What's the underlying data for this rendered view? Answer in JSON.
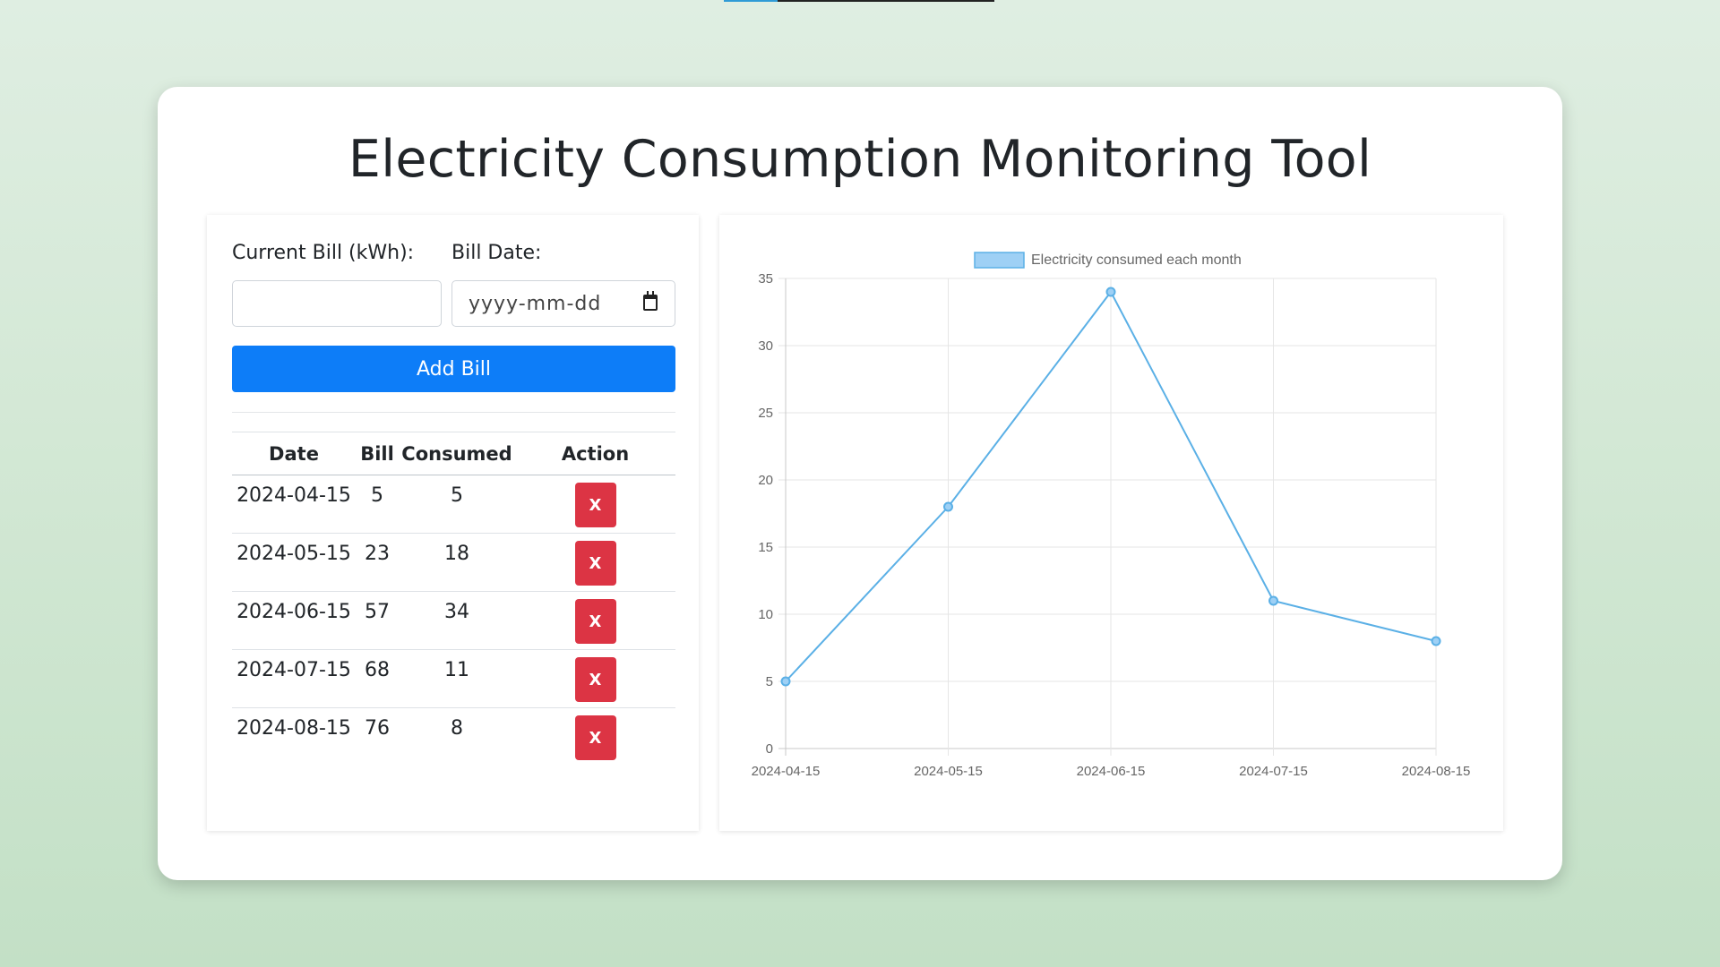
{
  "app": {
    "title": "Electricity Consumption Monitoring Tool",
    "top_progress_percent": 20
  },
  "form": {
    "bill_label": "Current Bill (kWh):",
    "bill_value": "",
    "date_label": "Bill Date:",
    "date_placeholder": "yyyy-mm-dd",
    "add_button_label": "Add Bill"
  },
  "table": {
    "headers": [
      "Date",
      "Bill",
      "Consumed",
      "Action"
    ],
    "delete_label": "X",
    "rows": [
      {
        "date": "2024-04-15",
        "bill": "5",
        "consumed": "5"
      },
      {
        "date": "2024-05-15",
        "bill": "23",
        "consumed": "18"
      },
      {
        "date": "2024-06-15",
        "bill": "57",
        "consumed": "34"
      },
      {
        "date": "2024-07-15",
        "bill": "68",
        "consumed": "11"
      },
      {
        "date": "2024-08-15",
        "bill": "76",
        "consumed": "8"
      }
    ]
  },
  "colors": {
    "accent": "#0d7df8",
    "danger": "#dc3444",
    "line": "#5bb0e6",
    "legend_fill": "#9ed0f5"
  },
  "chart_data": {
    "type": "line",
    "categories": [
      "2024-04-15",
      "2024-05-15",
      "2024-06-15",
      "2024-07-15",
      "2024-08-15"
    ],
    "series": [
      {
        "name": "Electricity consumed each month",
        "values": [
          5,
          18,
          34,
          11,
          8
        ]
      }
    ],
    "ylim": [
      0,
      35
    ],
    "yticks": [
      0,
      5,
      10,
      15,
      20,
      25,
      30,
      35
    ],
    "grid": true,
    "legend": "top"
  }
}
